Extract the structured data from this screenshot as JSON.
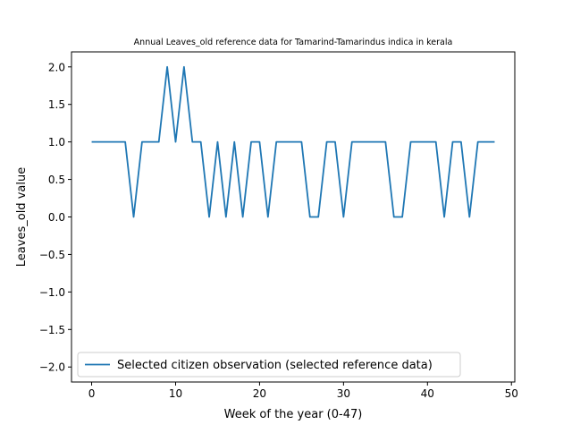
{
  "chart_data": {
    "type": "line",
    "title": "Annual Leaves_old reference data for Tamarind-Tamarindus indica in kerala",
    "xlabel": "Week of the year (0-47)",
    "ylabel": "Leaves_old value",
    "xlim": [
      -2.4,
      50.4
    ],
    "ylim": [
      -2.2,
      2.2
    ],
    "xticks": [
      0,
      10,
      20,
      30,
      40,
      50
    ],
    "xtick_labels": [
      "0",
      "10",
      "20",
      "30",
      "40",
      "50"
    ],
    "yticks": [
      -2.0,
      -1.5,
      -1.0,
      -0.5,
      0.0,
      0.5,
      1.0,
      1.5,
      2.0
    ],
    "ytick_labels": [
      "−2.0",
      "−1.5",
      "−1.0",
      "−0.5",
      "0.0",
      "0.5",
      "1.0",
      "1.5",
      "2.0"
    ],
    "grid": false,
    "legend_position": "lower-left",
    "series": [
      {
        "name": "Selected citizen observation (selected reference data)",
        "color": "#1f77b4",
        "x": [
          0,
          1,
          2,
          3,
          4,
          5,
          6,
          7,
          8,
          9,
          10,
          11,
          12,
          13,
          14,
          15,
          16,
          17,
          18,
          19,
          20,
          21,
          22,
          23,
          24,
          25,
          26,
          27,
          28,
          29,
          30,
          31,
          32,
          33,
          34,
          35,
          36,
          37,
          38,
          39,
          40,
          41,
          42,
          43,
          44,
          45,
          46,
          47,
          48
        ],
        "y": [
          1,
          1,
          1,
          1,
          1,
          0,
          1,
          1,
          1,
          2,
          1,
          2,
          1,
          1,
          0,
          1,
          0,
          1,
          0,
          1,
          1,
          0,
          1,
          1,
          1,
          1,
          0,
          0,
          1,
          1,
          0,
          1,
          1,
          1,
          1,
          1,
          0,
          0,
          1,
          1,
          1,
          1,
          0,
          1,
          1,
          0,
          1,
          1,
          1
        ]
      }
    ]
  }
}
